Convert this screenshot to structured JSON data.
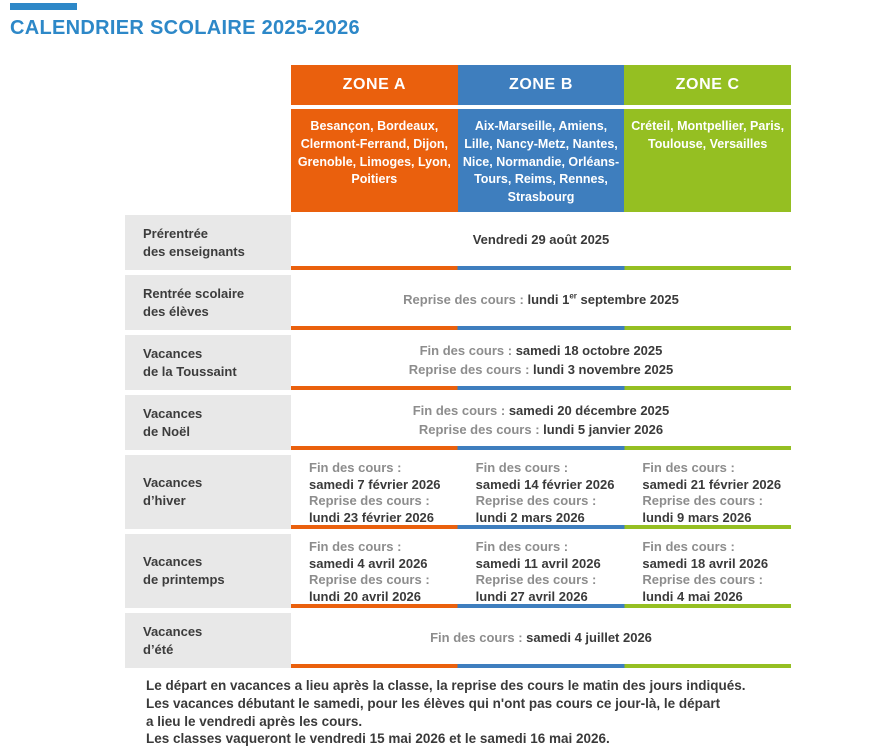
{
  "page": {
    "title": "CALENDRIER SCOLAIRE 2025-2026"
  },
  "colors": {
    "accent_blue": "#2D88C8",
    "zone_a": "#EA600D",
    "zone_b": "#3E7EBE",
    "zone_c": "#95BF22",
    "label_bg": "#E8E8E8",
    "label_text": "#3C3C3C",
    "muted_text": "#8D8D8D",
    "dark_text": "#3A3A3A"
  },
  "zones": [
    {
      "label": "ZONE A",
      "cities": "Besançon, Bordeaux, Clermont-Ferrand, Dijon, Grenoble, Limoges, Lyon, Poitiers"
    },
    {
      "label": "ZONE B",
      "cities": "Aix-Marseille, Amiens, Lille, Nancy-Metz, Nantes, Nice, Normandie, Orléans-Tours, Reims, Rennes, Strasbourg"
    },
    {
      "label": "ZONE C",
      "cities": "Créteil, Montpellier, Paris, Toulouse, Versailles"
    }
  ],
  "rows": [
    {
      "label1": "Prérentrée",
      "label2": "des enseignants",
      "date": "Vendredi 29 août 2025"
    },
    {
      "label1": "Rentrée scolaire",
      "label2": "des élèves",
      "prefix": "Reprise des cours : ",
      "date_pre": "lundi 1",
      "date_sup": "er",
      "date_post": " septembre 2025"
    },
    {
      "label1": "Vacances",
      "label2": "de la Toussaint",
      "fin_label": "Fin des cours : ",
      "fin": "samedi 18 octobre 2025",
      "reprise_label": "Reprise des cours : ",
      "reprise": "lundi 3 novembre 2025"
    },
    {
      "label1": "Vacances",
      "label2": "de Noël",
      "fin_label": "Fin des cours : ",
      "fin": "samedi 20 décembre 2025",
      "reprise_label": "Reprise des cours : ",
      "reprise": "lundi 5 janvier 2026"
    },
    {
      "label1": "Vacances",
      "label2": "d’hiver",
      "fin_label": "Fin des cours :",
      "reprise_label": "Reprise des cours :",
      "cells": [
        {
          "fin": "samedi 7 février 2026",
          "reprise": "lundi 23 février 2026"
        },
        {
          "fin": "samedi 14 février 2026",
          "reprise": "lundi 2 mars 2026"
        },
        {
          "fin": "samedi 21 février 2026",
          "reprise": "lundi 9 mars 2026"
        }
      ]
    },
    {
      "label1": "Vacances",
      "label2": "de printemps",
      "fin_label": "Fin des cours :",
      "reprise_label": "Reprise des cours :",
      "cells": [
        {
          "fin": "samedi 4 avril 2026",
          "reprise": "lundi 20 avril 2026"
        },
        {
          "fin": "samedi 11 avril 2026",
          "reprise": "lundi 27 avril 2026"
        },
        {
          "fin": "samedi 18 avril 2026",
          "reprise": "lundi 4 mai 2026"
        }
      ]
    },
    {
      "label1": "Vacances",
      "label2": "d’été",
      "fin_label": "Fin des cours : ",
      "fin": "samedi 4 juillet 2026"
    }
  ],
  "footer": {
    "lines": [
      "Le départ en vacances a lieu après la classe, la reprise des cours le matin des jours indiqués.",
      "Les vacances débutant le samedi, pour les élèves qui n'ont pas cours ce jour-là, le départ",
      "a lieu le vendredi après les cours.",
      "Les classes vaqueront le vendredi 15 mai 2026 et le samedi 16 mai 2026."
    ]
  }
}
